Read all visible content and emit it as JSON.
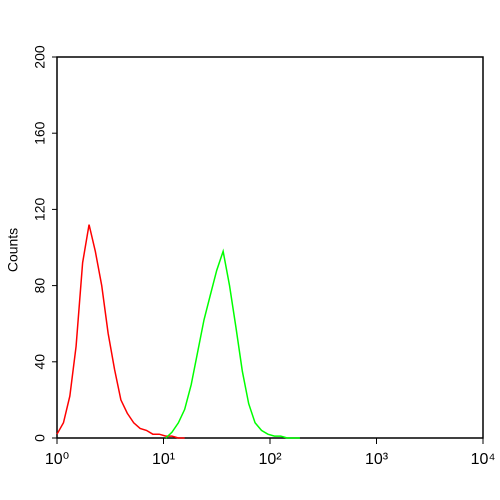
{
  "chart_data": {
    "type": "line",
    "y_label": "Counts",
    "xscale": "log",
    "x": [
      1.0,
      1.15,
      1.32,
      1.51,
      1.74,
      2.0,
      2.29,
      2.63,
      3.02,
      3.47,
      3.98,
      4.57,
      5.25,
      6.03,
      6.92,
      7.94,
      9.12,
      10.5,
      12.0,
      13.8,
      15.8,
      18.2,
      20.9,
      24.0,
      27.5,
      31.6,
      36.3,
      41.7,
      47.9,
      55.0,
      63.1,
      72.4,
      83.2,
      95.5,
      110,
      126,
      145,
      166,
      191
    ],
    "series": [
      {
        "color": "#ff0000",
        "values": [
          2,
          8,
          22,
          48,
          92,
          112,
          98,
          80,
          55,
          36,
          20,
          13,
          8,
          5,
          4,
          2,
          2,
          1,
          1,
          0,
          0,
          null,
          null,
          null,
          null,
          null,
          null,
          null,
          null,
          null,
          null,
          null,
          null,
          null,
          null,
          null,
          null,
          null,
          null
        ]
      },
      {
        "color": "#00ff00",
        "values": [
          null,
          null,
          null,
          null,
          null,
          null,
          null,
          null,
          null,
          null,
          null,
          null,
          null,
          null,
          null,
          null,
          null,
          0,
          3,
          8,
          15,
          28,
          45,
          62,
          75,
          88,
          98,
          80,
          58,
          35,
          18,
          8,
          4,
          2,
          1,
          1,
          0,
          0,
          0
        ]
      }
    ],
    "xlim": [
      1,
      10000
    ],
    "xticks": [
      {
        "value": 1,
        "label": "10⁰"
      },
      {
        "value": 10,
        "label": "10¹"
      },
      {
        "value": 100,
        "label": "10²"
      },
      {
        "value": 1000,
        "label": "10³"
      },
      {
        "value": 10000,
        "label": "10⁴"
      }
    ],
    "ylim": [
      0,
      200
    ],
    "yticks": [
      0,
      40,
      80,
      120,
      160,
      200
    ]
  }
}
